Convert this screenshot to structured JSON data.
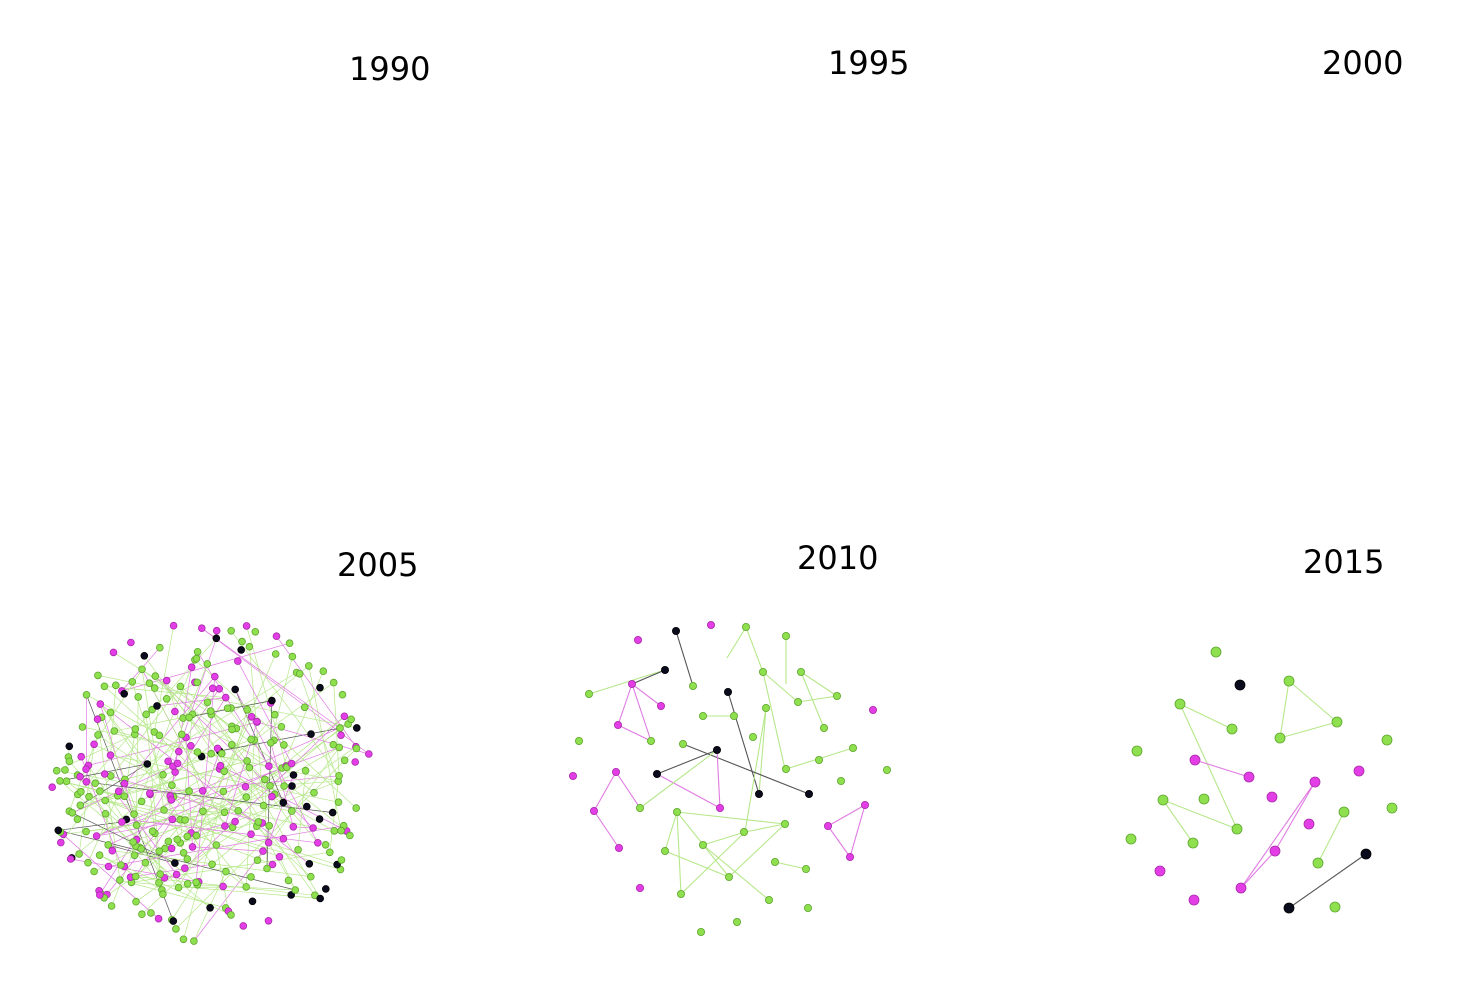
{
  "colors": {
    "green": "#8ee04e",
    "green_stroke": "#5fa52e",
    "magenta": "#e33ee6",
    "magenta_stroke": "#a82aa9",
    "black": "#0b0b1e",
    "edge_green": "#b6e88a",
    "edge_magenta": "#e07ae2",
    "edge_black": "#555555"
  },
  "panels": [
    {
      "id": "1990",
      "year": "1990",
      "nodes": [],
      "edges": []
    },
    {
      "id": "1995",
      "year": "1995",
      "nodes": [],
      "edges": []
    },
    {
      "id": "2000",
      "year": "2000",
      "nodes": [],
      "edges": []
    },
    {
      "id": "2005",
      "year": "2005",
      "dense": true,
      "nodes": [],
      "edges": []
    },
    {
      "id": "2010",
      "year": "2010",
      "nodes": [
        [
          "m",
          638,
          640
        ],
        [
          "k",
          676,
          631
        ],
        [
          "m",
          711,
          625
        ],
        [
          "g",
          746,
          627
        ],
        [
          "g",
          786,
          636
        ],
        [
          "k",
          665,
          670
        ],
        [
          "m",
          632,
          684
        ],
        [
          "m",
          661,
          706
        ],
        [
          "g",
          693,
          686
        ],
        [
          "k",
          728,
          692
        ],
        [
          "g",
          763,
          672
        ],
        [
          "g",
          801,
          672
        ],
        [
          "g",
          837,
          696
        ],
        [
          "m",
          873,
          710
        ],
        [
          "g",
          589,
          694
        ],
        [
          "m",
          618,
          725
        ],
        [
          "g",
          651,
          741
        ],
        [
          "g",
          703,
          716
        ],
        [
          "g",
          734,
          716
        ],
        [
          "g",
          766,
          708
        ],
        [
          "g",
          798,
          702
        ],
        [
          "g",
          824,
          728
        ],
        [
          "g",
          853,
          748
        ],
        [
          "g",
          579,
          741
        ],
        [
          "k",
          657,
          774
        ],
        [
          "k",
          717,
          750
        ],
        [
          "g",
          683,
          744
        ],
        [
          "g",
          753,
          737
        ],
        [
          "g",
          786,
          769
        ],
        [
          "g",
          819,
          760
        ],
        [
          "g",
          887,
          770
        ],
        [
          "m",
          573,
          776
        ],
        [
          "m",
          616,
          772
        ],
        [
          "g",
          640,
          808
        ],
        [
          "m",
          720,
          808
        ],
        [
          "k",
          759,
          794
        ],
        [
          "k",
          809,
          794
        ],
        [
          "g",
          841,
          781
        ],
        [
          "m",
          594,
          811
        ],
        [
          "g",
          677,
          812
        ],
        [
          "g",
          703,
          845
        ],
        [
          "g",
          744,
          832
        ],
        [
          "g",
          785,
          824
        ],
        [
          "m",
          828,
          826
        ],
        [
          "m",
          865,
          805
        ],
        [
          "m",
          619,
          848
        ],
        [
          "g",
          665,
          851
        ],
        [
          "g",
          729,
          877
        ],
        [
          "g",
          775,
          862
        ],
        [
          "m",
          850,
          857
        ],
        [
          "m",
          640,
          888
        ],
        [
          "g",
          681,
          894
        ],
        [
          "g",
          769,
          900
        ],
        [
          "g",
          806,
          869
        ],
        [
          "g",
          808,
          908
        ],
        [
          "g",
          701,
          932
        ],
        [
          "g",
          737,
          922
        ]
      ],
      "edges": [
        [
          "g",
          589,
          694,
          665,
          670
        ],
        [
          "k",
          665,
          670,
          632,
          684
        ],
        [
          "m",
          632,
          684,
          661,
          706
        ],
        [
          "m",
          632,
          684,
          618,
          725
        ],
        [
          "m",
          618,
          725,
          651,
          741
        ],
        [
          "m",
          632,
          684,
          651,
          741
        ],
        [
          "k",
          676,
          631,
          693,
          686
        ],
        [
          "g",
          746,
          627,
          763,
          672
        ],
        [
          "g",
          746,
          627,
          727,
          658
        ],
        [
          "g",
          786,
          636,
          786,
          684
        ],
        [
          "g",
          763,
          672,
          798,
          702
        ],
        [
          "g",
          763,
          672,
          785,
          769
        ],
        [
          "g",
          801,
          672,
          837,
          696
        ],
        [
          "g",
          801,
          672,
          824,
          728
        ],
        [
          "g",
          798,
          702,
          837,
          696
        ],
        [
          "k",
          728,
          692,
          759,
          794
        ],
        [
          "g",
          766,
          708,
          745,
          832
        ],
        [
          "g",
          766,
          708,
          759,
          794
        ],
        [
          "g",
          703,
          716,
          734,
          716
        ],
        [
          "k",
          683,
          744,
          809,
          794
        ],
        [
          "k",
          657,
          774,
          717,
          750
        ],
        [
          "m",
          657,
          774,
          720,
          808
        ],
        [
          "m",
          717,
          750,
          720,
          808
        ],
        [
          "m",
          616,
          772,
          594,
          811
        ],
        [
          "m",
          594,
          811,
          619,
          848
        ],
        [
          "m",
          616,
          772,
          640,
          808
        ],
        [
          "g",
          640,
          808,
          717,
          750
        ],
        [
          "g",
          677,
          812,
          785,
          824
        ],
        [
          "g",
          677,
          812,
          665,
          851
        ],
        [
          "g",
          677,
          812,
          729,
          877
        ],
        [
          "g",
          677,
          812,
          681,
          894
        ],
        [
          "g",
          703,
          845,
          769,
          900
        ],
        [
          "g",
          703,
          845,
          745,
          832
        ],
        [
          "g",
          745,
          832,
          785,
          824
        ],
        [
          "g",
          729,
          877,
          785,
          824
        ],
        [
          "g",
          665,
          851,
          729,
          877
        ],
        [
          "g",
          786,
          769,
          853,
          748
        ],
        [
          "g",
          775,
          862,
          806,
          869
        ],
        [
          "m",
          828,
          826,
          865,
          805
        ],
        [
          "m",
          865,
          805,
          850,
          857
        ],
        [
          "m",
          828,
          826,
          850,
          857
        ],
        [
          "g",
          681,
          894,
          745,
          832
        ]
      ]
    },
    {
      "id": "2015",
      "year": "2015",
      "nodes": [
        [
          "g",
          1216,
          652
        ],
        [
          "k",
          1240,
          685
        ],
        [
          "g",
          1289,
          681
        ],
        [
          "g",
          1180,
          704
        ],
        [
          "g",
          1232,
          729
        ],
        [
          "g",
          1280,
          738
        ],
        [
          "g",
          1337,
          722
        ],
        [
          "g",
          1137,
          751
        ],
        [
          "m",
          1195,
          760
        ],
        [
          "m",
          1249,
          777
        ],
        [
          "g",
          1387,
          740
        ],
        [
          "m",
          1359,
          771
        ],
        [
          "m",
          1315,
          782
        ],
        [
          "m",
          1272,
          797
        ],
        [
          "g",
          1163,
          800
        ],
        [
          "g",
          1204,
          799
        ],
        [
          "g",
          1237,
          829
        ],
        [
          "g",
          1344,
          812
        ],
        [
          "g",
          1392,
          808
        ],
        [
          "m",
          1309,
          824
        ],
        [
          "g",
          1131,
          839
        ],
        [
          "g",
          1193,
          843
        ],
        [
          "m",
          1275,
          851
        ],
        [
          "g",
          1318,
          863
        ],
        [
          "k",
          1366,
          854
        ],
        [
          "m",
          1160,
          871
        ],
        [
          "m",
          1241,
          888
        ],
        [
          "m",
          1194,
          900
        ],
        [
          "k",
          1289,
          908
        ],
        [
          "g",
          1335,
          907
        ]
      ],
      "edges": [
        [
          "g",
          1289,
          681,
          1337,
          722
        ],
        [
          "g",
          1289,
          681,
          1280,
          738
        ],
        [
          "g",
          1280,
          738,
          1337,
          722
        ],
        [
          "g",
          1180,
          704,
          1232,
          729
        ],
        [
          "g",
          1180,
          704,
          1237,
          829
        ],
        [
          "g",
          1163,
          800,
          1237,
          829
        ],
        [
          "g",
          1163,
          800,
          1193,
          843
        ],
        [
          "m",
          1195,
          760,
          1249,
          777
        ],
        [
          "m",
          1241,
          888,
          1315,
          782
        ],
        [
          "m",
          1241,
          888,
          1275,
          851
        ],
        [
          "m",
          1275,
          851,
          1315,
          782
        ],
        [
          "g",
          1318,
          863,
          1344,
          812
        ],
        [
          "k",
          1289,
          908,
          1366,
          854
        ]
      ]
    }
  ]
}
